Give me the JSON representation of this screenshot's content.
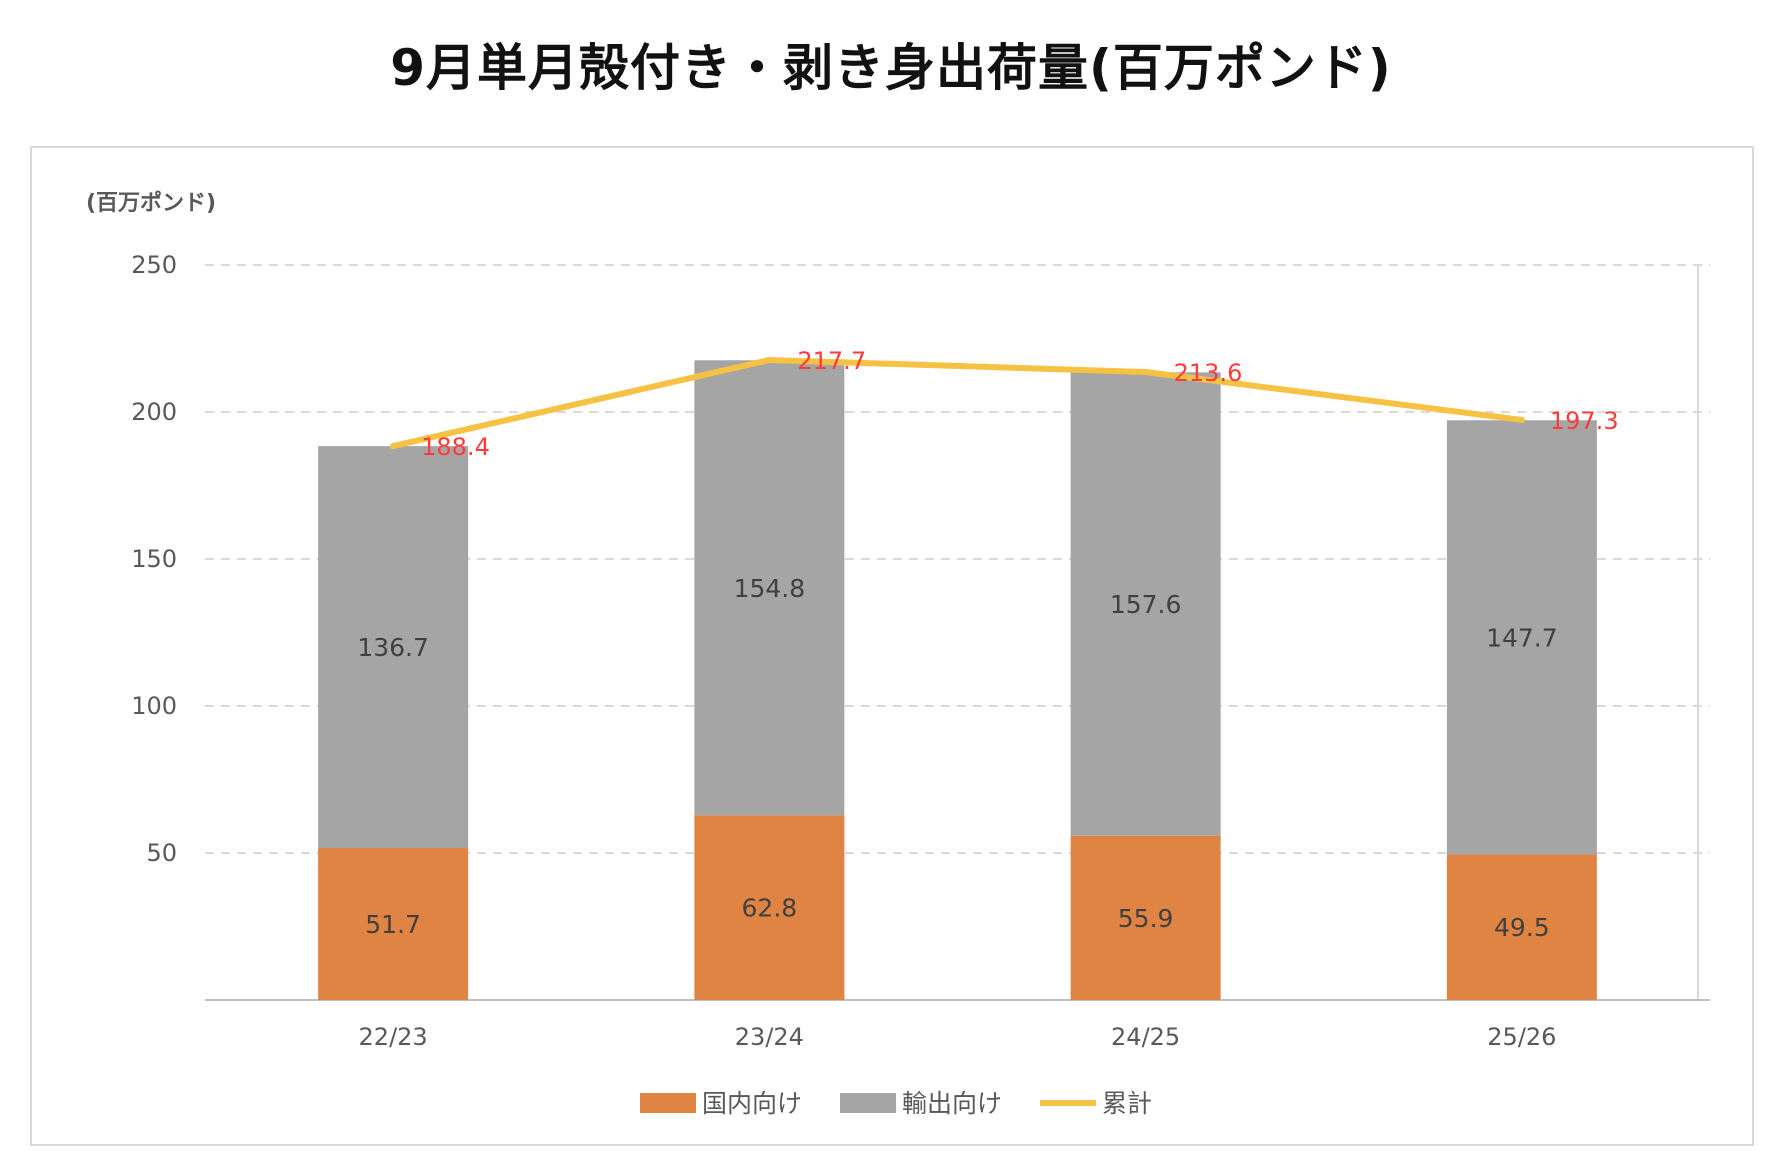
{
  "title": "9月単月殻付き・剥き身出荷量(百万ポンド)",
  "chart_data": {
    "type": "bar",
    "stacked": true,
    "unit_label": "(百万ポンド)",
    "categories": [
      "22/23",
      "23/24",
      "24/25",
      "25/26"
    ],
    "series": [
      {
        "name": "国内向け",
        "kind": "bar",
        "color": "#e08443",
        "values": [
          51.7,
          62.8,
          55.9,
          49.5
        ]
      },
      {
        "name": "輸出向け",
        "kind": "bar",
        "color": "#a5a5a5",
        "values": [
          136.7,
          154.8,
          157.6,
          147.7
        ]
      },
      {
        "name": "累計",
        "kind": "line",
        "color": "#f6c243",
        "values": [
          188.4,
          217.7,
          213.6,
          197.3
        ]
      }
    ],
    "ylim": [
      0,
      250
    ],
    "yticks": [
      50,
      100,
      150,
      200,
      250
    ],
    "grid": true,
    "legend_position": "bottom"
  }
}
